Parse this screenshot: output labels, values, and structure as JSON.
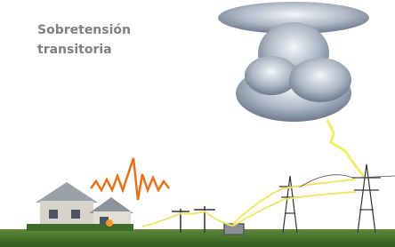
{
  "title": {
    "lines": [
      "Sobretensión",
      "transitoria"
    ]
  }
}
